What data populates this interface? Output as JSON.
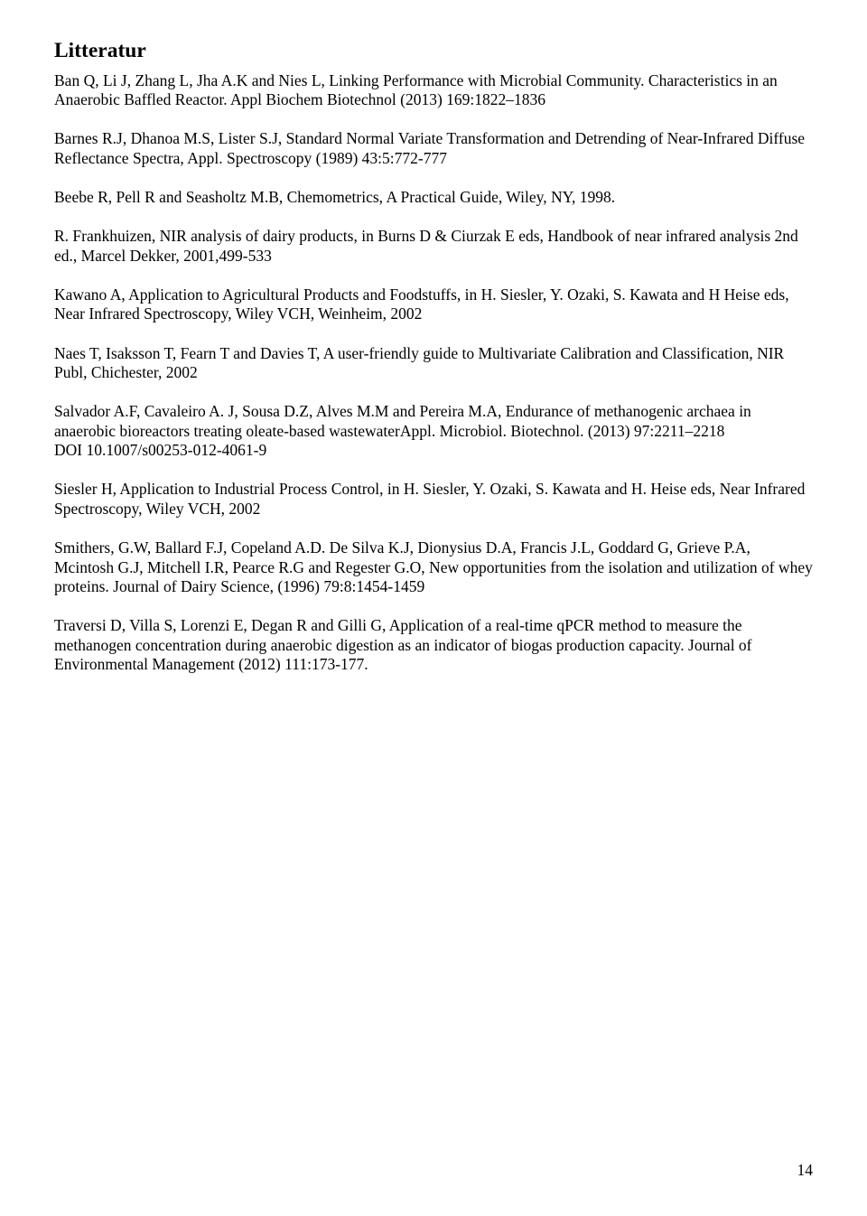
{
  "title": "Litteratur",
  "refs": [
    "Ban Q, Li J, Zhang L, Jha A.K and Nies L, Linking Performance with Microbial Community. Characteristics in an Anaerobic Baffled Reactor. Appl Biochem Biotechnol (2013) 169:1822–1836",
    "Barnes R.J, Dhanoa M.S, Lister S.J, Standard Normal Variate Transformation and Detrending of Near-Infrared Diffuse Reflectance Spectra, Appl. Spectroscopy (1989) 43:5:772-777",
    "Beebe R, Pell R and Seasholtz M.B, Chemometrics, A Practical Guide, Wiley, NY, 1998.",
    "R. Frankhuizen, NIR analysis of dairy products, in Burns D & Ciurzak E eds, Handbook of near infrared analysis 2nd ed., Marcel Dekker, 2001,499-533",
    "Kawano A, Application to Agricultural Products and Foodstuffs, in H. Siesler, Y. Ozaki, S. Kawata and H Heise eds, Near Infrared Spectroscopy, Wiley VCH, Weinheim, 2002",
    "Naes T, Isaksson T, Fearn T and Davies T, A user-friendly guide to Multivariate Calibration and Classification, NIR Publ,  Chichester, 2002",
    "Salvador A.F, Cavaleiro A. J, Sousa D.Z, Alves M.M and Pereira M.A, Endurance of methanogenic archaea in anaerobic bioreactors treating oleate-based wastewaterAppl. Microbiol. Biotechnol. (2013) 97:2211–2218\nDOI 10.1007/s00253-012-4061-9",
    "Siesler H, Application to Industrial Process Control, in H. Siesler, Y. Ozaki, S. Kawata and H. Heise eds, Near Infrared Spectroscopy, Wiley VCH, 2002",
    "Smithers, G.W, Ballard F.J, Copeland A.D. De Silva  K.J, Dionysius D.A, Francis J.L, Goddard G, Grieve P.A, Mcintosh G.J, Mitchell I.R, Pearce R.G and Regester G.O,  New opportunities from the isolation and utilization of whey proteins. Journal of Dairy Science, (1996) 79:8:1454-1459",
    "Traversi D, Villa S, Lorenzi E, Degan R and Gilli G, Application of a real-time qPCR method to measure the methanogen concentration during anaerobic digestion as an indicator of biogas production capacity. Journal of Environmental Management (2012) 111:173-177."
  ],
  "page_number": "14"
}
